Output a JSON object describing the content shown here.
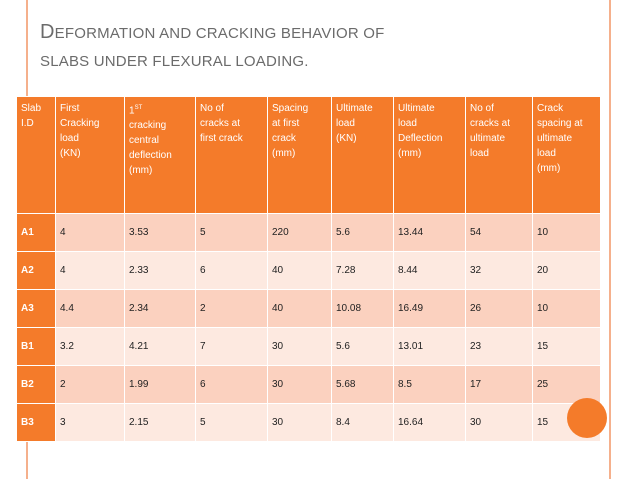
{
  "title": {
    "first_letter": "D",
    "line1_rest": "eformation and cracking behavior of",
    "line2": "slabs under flexural loading."
  },
  "table": {
    "headers": [
      {
        "lines": [
          "Slab",
          "I.D"
        ]
      },
      {
        "lines": [
          "First",
          "Cracking",
          "load",
          "(KN)"
        ]
      },
      {
        "lines": [
          "1",
          "cracking",
          "central",
          "deflection",
          "(mm)"
        ],
        "sup": "ST"
      },
      {
        "lines": [
          "No of",
          "cracks  at",
          "first crack"
        ]
      },
      {
        "lines": [
          "Spacing",
          "at first",
          "crack",
          "(mm)"
        ]
      },
      {
        "lines": [
          "Ultimate",
          "load",
          "(KN)"
        ]
      },
      {
        "lines": [
          "Ultimate",
          "load",
          "Deflection",
          "(mm)"
        ]
      },
      {
        "lines": [
          "No of",
          "cracks at",
          "ultimate",
          "load"
        ]
      },
      {
        "lines": [
          "Crack",
          "spacing   at",
          "ultimate",
          "load",
          "(mm)"
        ]
      }
    ],
    "rows": [
      [
        "A1",
        "4",
        "3.53",
        "5",
        "220",
        "5.6",
        "13.44",
        "54",
        "10"
      ],
      [
        "A2",
        "4",
        "2.33",
        "6",
        "40",
        "7.28",
        "8.44",
        "32",
        "20"
      ],
      [
        "A3",
        "4.4",
        "2.34",
        "2",
        "40",
        "10.08",
        "16.49",
        "26",
        "10"
      ],
      [
        "B1",
        "3.2",
        "4.21",
        "7",
        "30",
        "5.6",
        "13.01",
        "23",
        "15"
      ],
      [
        "B2",
        "2",
        "1.99",
        "6",
        "30",
        "5.68",
        "8.5",
        "17",
        "25"
      ],
      [
        "B3",
        "3",
        "2.15",
        "5",
        "30",
        "8.4",
        "16.64",
        "30",
        "15"
      ]
    ]
  },
  "colors": {
    "accent": "#f47b2a",
    "row_dark": "#fbd1bf",
    "row_light": "#fde9e0",
    "rule": "#f5b08c",
    "title_text": "#6b6b6b"
  }
}
